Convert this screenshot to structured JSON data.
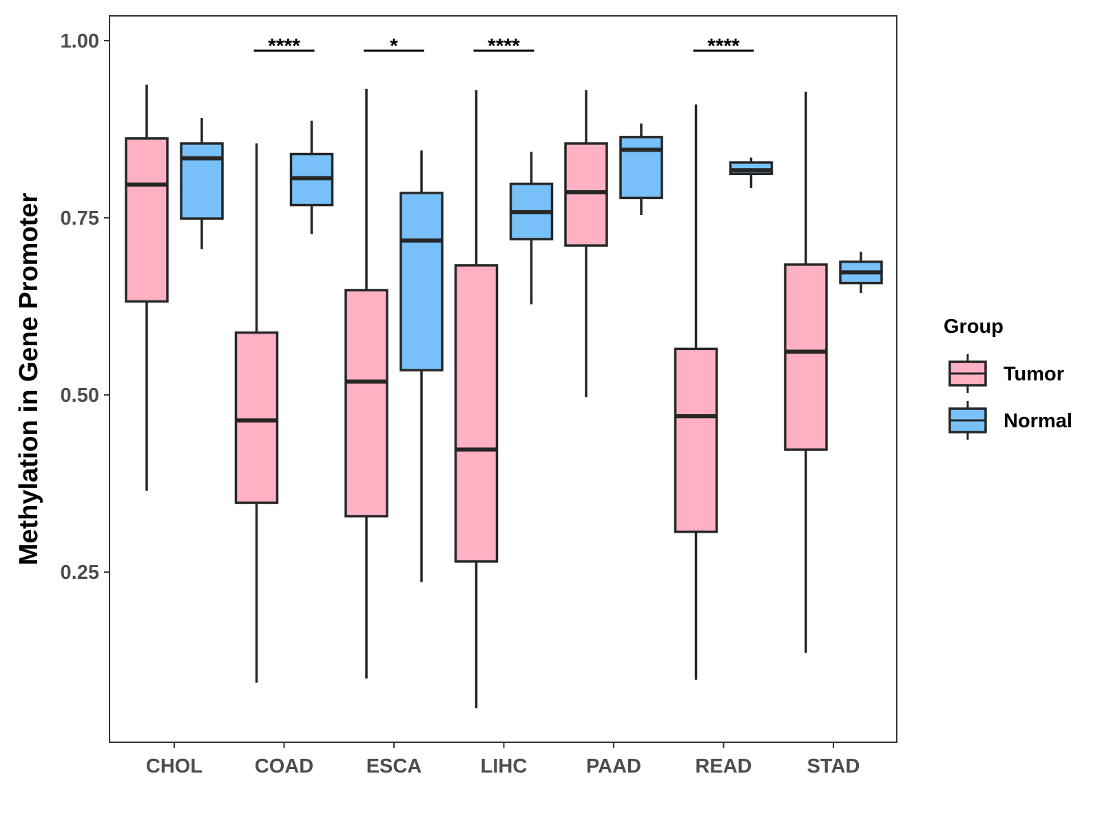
{
  "chart_data": {
    "type": "boxplot",
    "title": "",
    "xlabel": "",
    "ylabel": "Methylation in Gene Promoter",
    "ylim": [
      0.01,
      1.035
    ],
    "yticks": [
      0.25,
      0.5,
      0.75,
      1.0
    ],
    "ytick_labels": [
      "0.25",
      "0.50",
      "0.75",
      "1.00"
    ],
    "categories": [
      "CHOL",
      "COAD",
      "ESCA",
      "LIHC",
      "PAAD",
      "READ",
      "STAD"
    ],
    "legend": {
      "title": "Group",
      "position": "right",
      "entries": [
        {
          "name": "Tumor",
          "color": "#FFB0C2"
        },
        {
          "name": "Normal",
          "color": "#78C1F8"
        }
      ]
    },
    "series": [
      {
        "name": "Tumor",
        "color": "#FFB0C2",
        "boxes": [
          {
            "category": "CHOL",
            "min": 0.365,
            "q1": 0.632,
            "median": 0.797,
            "q3": 0.862,
            "max": 0.938
          },
          {
            "category": "COAD",
            "min": 0.094,
            "q1": 0.348,
            "median": 0.464,
            "q3": 0.588,
            "max": 0.855
          },
          {
            "category": "ESCA",
            "min": 0.1,
            "q1": 0.329,
            "median": 0.519,
            "q3": 0.648,
            "max": 0.932
          },
          {
            "category": "LIHC",
            "min": 0.058,
            "q1": 0.265,
            "median": 0.423,
            "q3": 0.683,
            "max": 0.93
          },
          {
            "category": "PAAD",
            "min": 0.497,
            "q1": 0.711,
            "median": 0.786,
            "q3": 0.855,
            "max": 0.93
          },
          {
            "category": "READ",
            "min": 0.098,
            "q1": 0.307,
            "median": 0.47,
            "q3": 0.565,
            "max": 0.91
          },
          {
            "category": "STAD",
            "min": 0.136,
            "q1": 0.423,
            "median": 0.561,
            "q3": 0.684,
            "max": 0.928
          }
        ]
      },
      {
        "name": "Normal",
        "color": "#78C1F8",
        "boxes": [
          {
            "category": "CHOL",
            "min": 0.706,
            "q1": 0.749,
            "median": 0.834,
            "q3": 0.855,
            "max": 0.891
          },
          {
            "category": "COAD",
            "min": 0.727,
            "q1": 0.768,
            "median": 0.806,
            "q3": 0.84,
            "max": 0.887
          },
          {
            "category": "ESCA",
            "min": 0.236,
            "q1": 0.535,
            "median": 0.718,
            "q3": 0.785,
            "max": 0.845
          },
          {
            "category": "LIHC",
            "min": 0.628,
            "q1": 0.72,
            "median": 0.758,
            "q3": 0.798,
            "max": 0.843
          },
          {
            "category": "PAAD",
            "min": 0.754,
            "q1": 0.778,
            "median": 0.846,
            "q3": 0.864,
            "max": 0.883
          },
          {
            "category": "READ",
            "min": 0.792,
            "q1": 0.812,
            "median": 0.817,
            "q3": 0.828,
            "max": 0.835
          },
          {
            "category": "STAD",
            "min": 0.644,
            "q1": 0.658,
            "median": 0.673,
            "q3": 0.688,
            "max": 0.702
          }
        ]
      }
    ],
    "annotations": [
      {
        "category": "COAD",
        "label": "****",
        "y": 0.986
      },
      {
        "category": "ESCA",
        "label": "*",
        "y": 0.986
      },
      {
        "category": "LIHC",
        "label": "****",
        "y": 0.986
      },
      {
        "category": "READ",
        "label": "****",
        "y": 0.986
      }
    ],
    "grid": false
  }
}
